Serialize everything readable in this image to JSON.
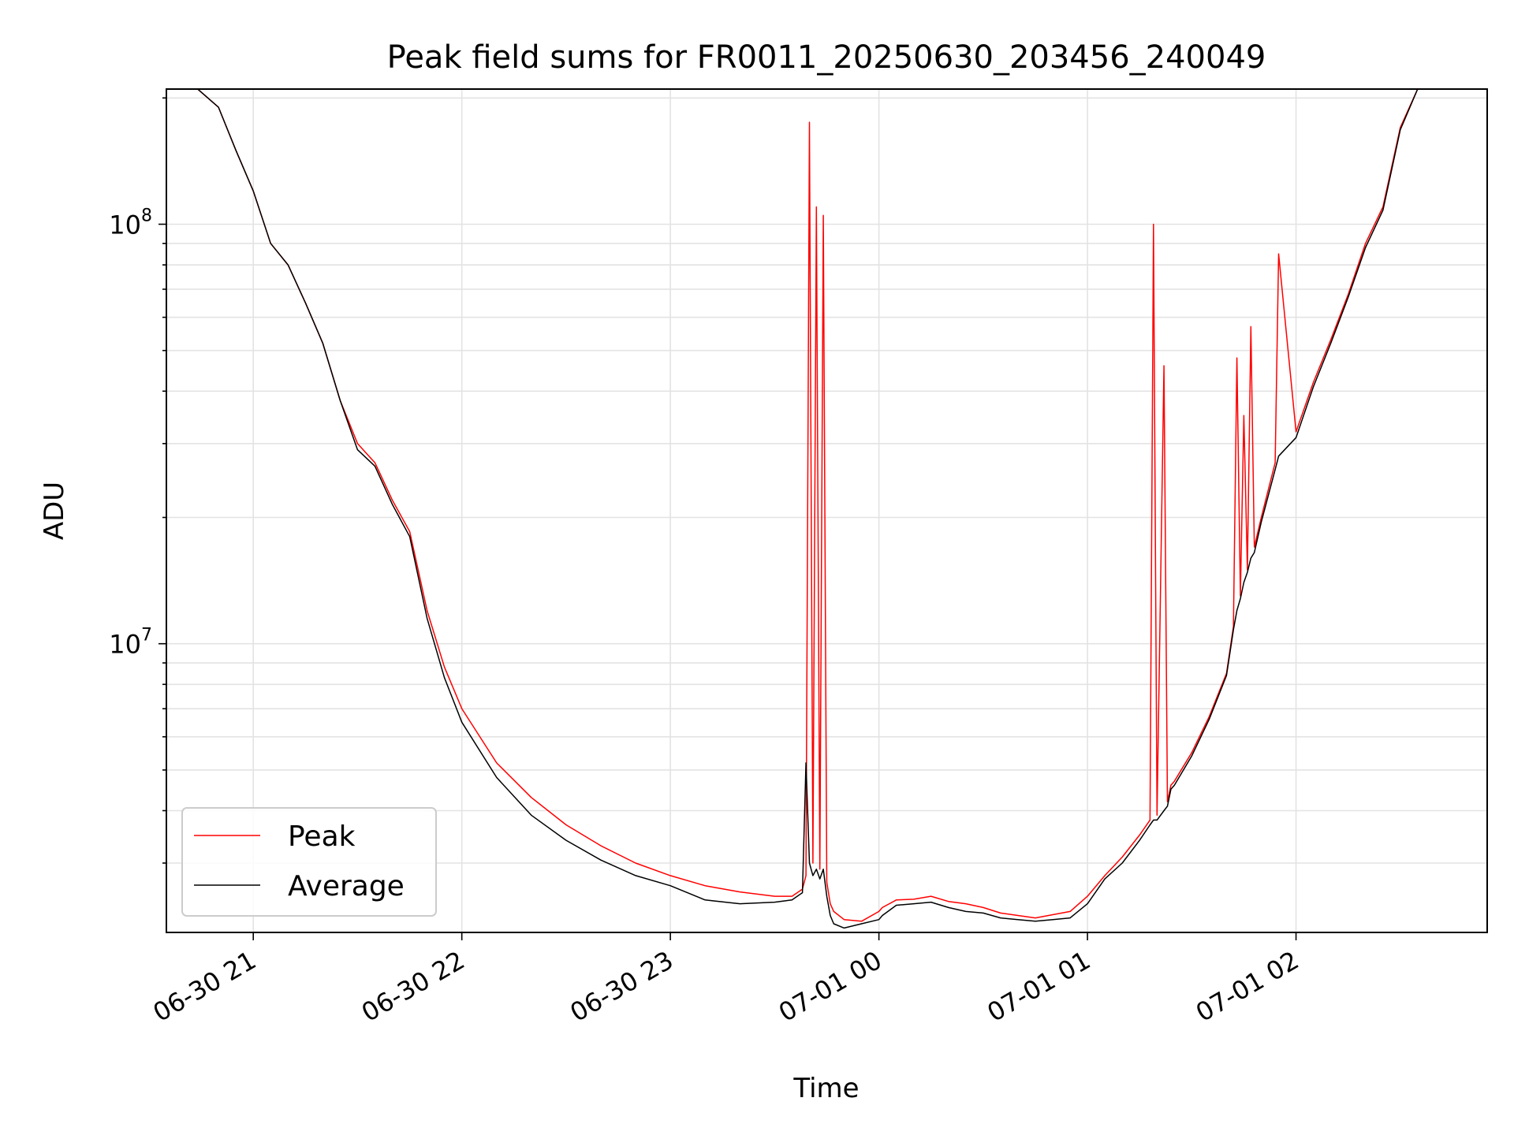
{
  "chart_data": {
    "type": "line",
    "title": "Peak field sums for FR0011_20250630_203456_240049",
    "xlabel": "Time",
    "ylabel": "ADU",
    "yscale": "log",
    "xlim": [
      "2025-06-30 20:35",
      "2025-07-01 02:55"
    ],
    "ylim": [
      2050000,
      210000000
    ],
    "grid": true,
    "legend_position": "lower-left",
    "x_tick_labels": [
      "06-30 21",
      "06-30 22",
      "06-30 23",
      "07-01 00",
      "07-01 01",
      "07-01 02"
    ],
    "y_tick_labels": [
      {
        "base": "10",
        "exp": "7"
      },
      {
        "base": "10",
        "exp": "8"
      }
    ],
    "series": [
      {
        "name": "Peak",
        "color": "#ff0000",
        "x": [
          "2025-06-30 20:44",
          "2025-06-30 20:50",
          "2025-06-30 20:55",
          "2025-06-30 21:00",
          "2025-06-30 21:05",
          "2025-06-30 21:10",
          "2025-06-30 21:15",
          "2025-06-30 21:20",
          "2025-06-30 21:25",
          "2025-06-30 21:30",
          "2025-06-30 21:35",
          "2025-06-30 21:40",
          "2025-06-30 21:45",
          "2025-06-30 21:50",
          "2025-06-30 21:55",
          "2025-06-30 22:00",
          "2025-06-30 22:10",
          "2025-06-30 22:20",
          "2025-06-30 22:30",
          "2025-06-30 22:40",
          "2025-06-30 22:50",
          "2025-06-30 23:00",
          "2025-06-30 23:10",
          "2025-06-30 23:20",
          "2025-06-30 23:30",
          "2025-06-30 23:35",
          "2025-06-30 23:38",
          "2025-06-30 23:39",
          "2025-06-30 23:40",
          "2025-06-30 23:41",
          "2025-06-30 23:42",
          "2025-06-30 23:43",
          "2025-06-30 23:44",
          "2025-06-30 23:45",
          "2025-06-30 23:46",
          "2025-06-30 23:47",
          "2025-06-30 23:50",
          "2025-06-30 23:55",
          "2025-07-01 00:00",
          "2025-07-01 00:01",
          "2025-07-01 00:05",
          "2025-07-01 00:10",
          "2025-07-01 00:15",
          "2025-07-01 00:20",
          "2025-07-01 00:25",
          "2025-07-01 00:30",
          "2025-07-01 00:35",
          "2025-07-01 00:40",
          "2025-07-01 00:45",
          "2025-07-01 00:50",
          "2025-07-01 00:55",
          "2025-07-01 01:00",
          "2025-07-01 01:05",
          "2025-07-01 01:10",
          "2025-07-01 01:15",
          "2025-07-01 01:18",
          "2025-07-01 01:19",
          "2025-07-01 01:20",
          "2025-07-01 01:22",
          "2025-07-01 01:23",
          "2025-07-01 01:24",
          "2025-07-01 01:25",
          "2025-07-01 01:30",
          "2025-07-01 01:35",
          "2025-07-01 01:40",
          "2025-07-01 01:42",
          "2025-07-01 01:43",
          "2025-07-01 01:44",
          "2025-07-01 01:45",
          "2025-07-01 01:46",
          "2025-07-01 01:47",
          "2025-07-01 01:48",
          "2025-07-01 01:50",
          "2025-07-01 01:54",
          "2025-07-01 01:55",
          "2025-07-01 02:00",
          "2025-07-01 02:05",
          "2025-07-01 02:10",
          "2025-07-01 02:15",
          "2025-07-01 02:20",
          "2025-07-01 02:25",
          "2025-07-01 02:30",
          "2025-07-01 02:35"
        ],
        "y": [
          210000000,
          190000000,
          150000000,
          120000000,
          90000000,
          80000000,
          65000000,
          52000000,
          38000000,
          30000000,
          27000000,
          22000000,
          18500000,
          12000000,
          8800000,
          7000000,
          5200000,
          4300000,
          3700000,
          3300000,
          3000000,
          2800000,
          2650000,
          2560000,
          2500000,
          2500000,
          2600000,
          2800000,
          175000000,
          3000000,
          110000000,
          2900000,
          105000000,
          2700000,
          2400000,
          2300000,
          2200000,
          2180000,
          2300000,
          2350000,
          2450000,
          2460000,
          2500000,
          2430000,
          2400000,
          2350000,
          2280000,
          2250000,
          2220000,
          2260000,
          2300000,
          2500000,
          2800000,
          3100000,
          3500000,
          3800000,
          100000000,
          3900000,
          46000000,
          4200000,
          4600000,
          4700000,
          5500000,
          6700000,
          8500000,
          11000000,
          48000000,
          13000000,
          35000000,
          15000000,
          57000000,
          17000000,
          20000000,
          27000000,
          85000000,
          32000000,
          42000000,
          53000000,
          68000000,
          90000000,
          110000000,
          170000000,
          210000000
        ]
      },
      {
        "name": "Average",
        "color": "#000000",
        "x": [
          "2025-06-30 20:44",
          "2025-06-30 20:50",
          "2025-06-30 20:55",
          "2025-06-30 21:00",
          "2025-06-30 21:05",
          "2025-06-30 21:10",
          "2025-06-30 21:15",
          "2025-06-30 21:20",
          "2025-06-30 21:25",
          "2025-06-30 21:30",
          "2025-06-30 21:35",
          "2025-06-30 21:40",
          "2025-06-30 21:45",
          "2025-06-30 21:50",
          "2025-06-30 21:55",
          "2025-06-30 22:00",
          "2025-06-30 22:10",
          "2025-06-30 22:20",
          "2025-06-30 22:30",
          "2025-06-30 22:40",
          "2025-06-30 22:50",
          "2025-06-30 23:00",
          "2025-06-30 23:10",
          "2025-06-30 23:20",
          "2025-06-30 23:30",
          "2025-06-30 23:35",
          "2025-06-30 23:38",
          "2025-06-30 23:39",
          "2025-06-30 23:40",
          "2025-06-30 23:41",
          "2025-06-30 23:42",
          "2025-06-30 23:43",
          "2025-06-30 23:44",
          "2025-06-30 23:45",
          "2025-06-30 23:46",
          "2025-06-30 23:47",
          "2025-06-30 23:50",
          "2025-06-30 23:55",
          "2025-07-01 00:00",
          "2025-07-01 00:01",
          "2025-07-01 00:05",
          "2025-07-01 00:10",
          "2025-07-01 00:15",
          "2025-07-01 00:20",
          "2025-07-01 00:25",
          "2025-07-01 00:30",
          "2025-07-01 00:35",
          "2025-07-01 00:40",
          "2025-07-01 00:45",
          "2025-07-01 00:50",
          "2025-07-01 00:55",
          "2025-07-01 01:00",
          "2025-07-01 01:05",
          "2025-07-01 01:10",
          "2025-07-01 01:15",
          "2025-07-01 01:18",
          "2025-07-01 01:19",
          "2025-07-01 01:20",
          "2025-07-01 01:22",
          "2025-07-01 01:23",
          "2025-07-01 01:24",
          "2025-07-01 01:25",
          "2025-07-01 01:30",
          "2025-07-01 01:35",
          "2025-07-01 01:40",
          "2025-07-01 01:42",
          "2025-07-01 01:43",
          "2025-07-01 01:44",
          "2025-07-01 01:45",
          "2025-07-01 01:46",
          "2025-07-01 01:47",
          "2025-07-01 01:48",
          "2025-07-01 01:50",
          "2025-07-01 01:54",
          "2025-07-01 01:55",
          "2025-07-01 02:00",
          "2025-07-01 02:05",
          "2025-07-01 02:10",
          "2025-07-01 02:15",
          "2025-07-01 02:20",
          "2025-07-01 02:25",
          "2025-07-01 02:30",
          "2025-07-01 02:35"
        ],
        "y": [
          210000000,
          190000000,
          150000000,
          120000000,
          90000000,
          80000000,
          65000000,
          52000000,
          38000000,
          29000000,
          26500000,
          21500000,
          18000000,
          11500000,
          8300000,
          6500000,
          4800000,
          3900000,
          3400000,
          3050000,
          2800000,
          2650000,
          2450000,
          2400000,
          2420000,
          2450000,
          2550000,
          5200000,
          3000000,
          2800000,
          2900000,
          2750000,
          2900000,
          2500000,
          2250000,
          2150000,
          2100000,
          2150000,
          2200000,
          2250000,
          2380000,
          2400000,
          2420000,
          2350000,
          2300000,
          2280000,
          2220000,
          2200000,
          2180000,
          2200000,
          2220000,
          2400000,
          2750000,
          3000000,
          3400000,
          3700000,
          3800000,
          3800000,
          4000000,
          4100000,
          4500000,
          4600000,
          5400000,
          6600000,
          8400000,
          10800000,
          12000000,
          12800000,
          14000000,
          14800000,
          16000000,
          16500000,
          19500000,
          26000000,
          28000000,
          31000000,
          41000000,
          52000000,
          67000000,
          88000000,
          108000000,
          168000000,
          210000000
        ]
      }
    ]
  }
}
